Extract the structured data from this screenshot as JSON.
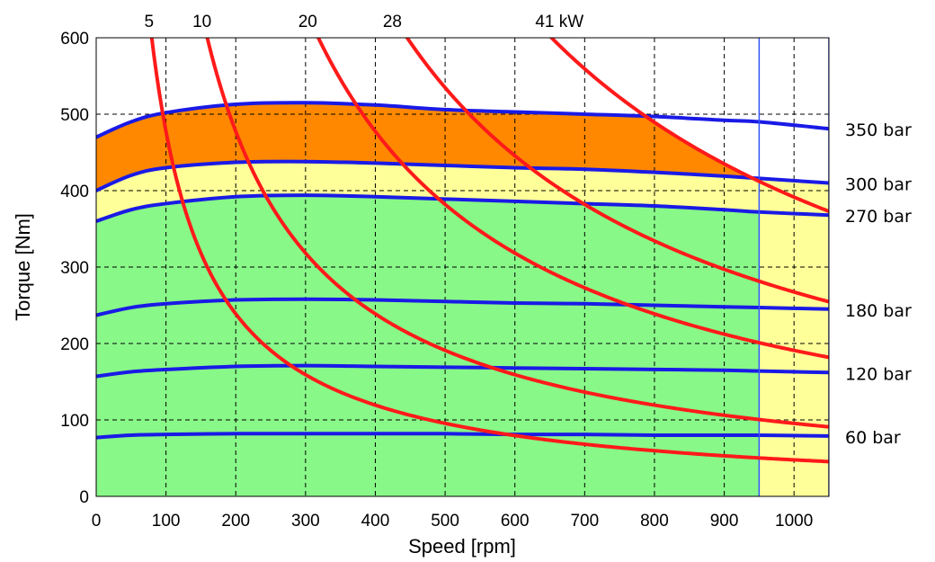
{
  "chart_data": {
    "type": "line",
    "title": "",
    "xlabel": "Speed [rpm]",
    "ylabel": "Torque [Nm]",
    "xlim": [
      0,
      1050
    ],
    "ylim": [
      0,
      600
    ],
    "grid": true,
    "xticks": [
      0,
      100,
      200,
      300,
      400,
      500,
      600,
      700,
      800,
      900,
      1000
    ],
    "yticks": [
      0,
      100,
      200,
      300,
      400,
      500,
      600
    ],
    "speed_limit_rpm": 950,
    "colors": {
      "torque_line": "#1a1ae6",
      "power_line": "#ff1a1a",
      "region_continuous": "#88f888",
      "region_intermittent": "#ffff99",
      "region_peak": "#ff8800",
      "speed_limit_line": "#3355ff"
    },
    "torque_curves": [
      {
        "label": "350 bar",
        "x": [
          0,
          50,
          100,
          200,
          300,
          400,
          500,
          600,
          700,
          800,
          900,
          950,
          1050
        ],
        "y": [
          470,
          490,
          502,
          513,
          515,
          512,
          506,
          503,
          500,
          497,
          492,
          490,
          481
        ]
      },
      {
        "label": "300 bar",
        "x": [
          0,
          50,
          100,
          200,
          300,
          400,
          500,
          600,
          700,
          800,
          900,
          950,
          1050
        ],
        "y": [
          400,
          420,
          430,
          437,
          438,
          436,
          433,
          430,
          428,
          424,
          419,
          416,
          410
        ]
      },
      {
        "label": "270 bar",
        "x": [
          0,
          50,
          100,
          200,
          300,
          400,
          500,
          600,
          700,
          800,
          900,
          950,
          1050
        ],
        "y": [
          360,
          375,
          383,
          392,
          394,
          392,
          389,
          386,
          383,
          380,
          375,
          372,
          368
        ]
      },
      {
        "label": "180 bar",
        "x": [
          0,
          50,
          100,
          200,
          300,
          400,
          500,
          600,
          700,
          800,
          900,
          950,
          1050
        ],
        "y": [
          237,
          247,
          252,
          257,
          258,
          257,
          255,
          253,
          252,
          250,
          248,
          247,
          245
        ]
      },
      {
        "label": "120 bar",
        "x": [
          0,
          50,
          100,
          200,
          300,
          400,
          500,
          600,
          700,
          800,
          900,
          950,
          1050
        ],
        "y": [
          157,
          163,
          166,
          170,
          171,
          170,
          169,
          168,
          167,
          166,
          165,
          164,
          162
        ]
      },
      {
        "label": "60 bar",
        "x": [
          0,
          50,
          100,
          200,
          300,
          400,
          500,
          600,
          700,
          800,
          900,
          950,
          1050
        ],
        "y": [
          77,
          80,
          81,
          82,
          82,
          82,
          82,
          81,
          81,
          80,
          80,
          80,
          79
        ]
      }
    ],
    "power_curves": [
      {
        "label": "5",
        "kw": 5
      },
      {
        "label": "10",
        "kw": 10
      },
      {
        "label": "20",
        "kw": 20
      },
      {
        "label": "28",
        "kw": 28
      },
      {
        "label": "41 kW",
        "kw": 41
      }
    ]
  }
}
